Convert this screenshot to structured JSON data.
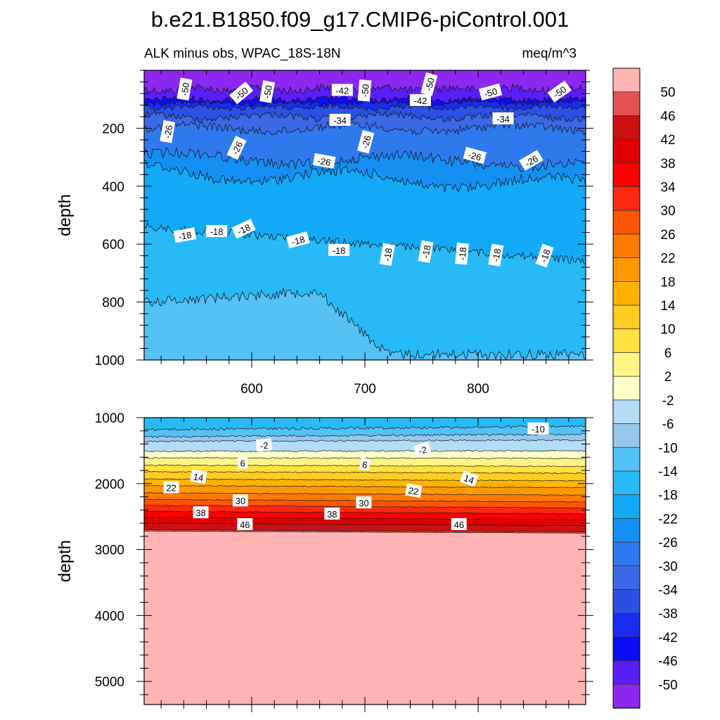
{
  "chart_data": [
    {
      "type": "contour",
      "title": "b.e21.B1850.f09_g17.CMIP6-piControl.001",
      "subtitle_left": "ALK minus obs, WPAC_18S-18N",
      "subtitle_right": "meq/m^3",
      "ylabel": "depth",
      "ylim": [
        1000,
        0
      ],
      "xlim": [
        505,
        895
      ],
      "xticks": [
        "600",
        "700",
        "800"
      ],
      "yticks": [
        "200",
        "400",
        "600",
        "800",
        "1000"
      ],
      "contour_labels": [
        {
          "text": "-50",
          "x": 541,
          "y": 65
        },
        {
          "text": "-50",
          "x": 591,
          "y": 79
        },
        {
          "text": "-50",
          "x": 614,
          "y": 74
        },
        {
          "text": "-42",
          "x": 680,
          "y": 69
        },
        {
          "text": "-50",
          "x": 700,
          "y": 70
        },
        {
          "text": "-50",
          "x": 757,
          "y": 48
        },
        {
          "text": "-42",
          "x": 749,
          "y": 104
        },
        {
          "text": "-50",
          "x": 811,
          "y": 76
        },
        {
          "text": "-50",
          "x": 872,
          "y": 74
        },
        {
          "text": "-34",
          "x": 678,
          "y": 172
        },
        {
          "text": "-34",
          "x": 822,
          "y": 167
        },
        {
          "text": "-26",
          "x": 526,
          "y": 212
        },
        {
          "text": "-26",
          "x": 587,
          "y": 268
        },
        {
          "text": "-26",
          "x": 701,
          "y": 247
        },
        {
          "text": "-26",
          "x": 664,
          "y": 314
        },
        {
          "text": "-26",
          "x": 797,
          "y": 295
        },
        {
          "text": "-26",
          "x": 847,
          "y": 312
        },
        {
          "text": "-18",
          "x": 541,
          "y": 570
        },
        {
          "text": "-18",
          "x": 569,
          "y": 556
        },
        {
          "text": "-18",
          "x": 593,
          "y": 548
        },
        {
          "text": "-18",
          "x": 641,
          "y": 587
        },
        {
          "text": "-18",
          "x": 677,
          "y": 621
        },
        {
          "text": "-18",
          "x": 720,
          "y": 636
        },
        {
          "text": "-18",
          "x": 754,
          "y": 626
        },
        {
          "text": "-18",
          "x": 786,
          "y": 633
        },
        {
          "text": "-18",
          "x": 816,
          "y": 638
        },
        {
          "text": "-18",
          "x": 859,
          "y": 640
        }
      ]
    },
    {
      "type": "contour",
      "ylabel": "depth",
      "ylim": [
        5350,
        1000
      ],
      "xlim": [
        505,
        895
      ],
      "yticks": [
        "1000",
        "2000",
        "3000",
        "4000",
        "5000"
      ],
      "contour_labels": [
        {
          "text": "-10",
          "x": 853,
          "y": 1170
        },
        {
          "text": "-2",
          "x": 611,
          "y": 1420
        },
        {
          "text": "-2",
          "x": 751,
          "y": 1490
        },
        {
          "text": "6",
          "x": 592,
          "y": 1690
        },
        {
          "text": "6",
          "x": 700,
          "y": 1710
        },
        {
          "text": "14",
          "x": 553,
          "y": 1900
        },
        {
          "text": "14",
          "x": 792,
          "y": 1930
        },
        {
          "text": "22",
          "x": 529,
          "y": 2060
        },
        {
          "text": "22",
          "x": 743,
          "y": 2110
        },
        {
          "text": "30",
          "x": 590,
          "y": 2260
        },
        {
          "text": "30",
          "x": 699,
          "y": 2290
        },
        {
          "text": "38",
          "x": 555,
          "y": 2440
        },
        {
          "text": "38",
          "x": 671,
          "y": 2460
        },
        {
          "text": "46",
          "x": 594,
          "y": 2620
        },
        {
          "text": "46",
          "x": 783,
          "y": 2620
        }
      ]
    }
  ],
  "colorbar": {
    "labels": [
      "50",
      "46",
      "42",
      "38",
      "34",
      "30",
      "26",
      "22",
      "18",
      "14",
      "10",
      "6",
      "2",
      "-2",
      "-6",
      "-10",
      "-14",
      "-18",
      "-22",
      "-26",
      "-30",
      "-34",
      "-38",
      "-42",
      "-46",
      "-50"
    ],
    "colors": [
      "#ffb3b3",
      "#e35252",
      "#cc1111",
      "#e00000",
      "#ff0000",
      "#ff2810",
      "#ff5500",
      "#ff7a00",
      "#ff9900",
      "#ffb300",
      "#ffcc22",
      "#ffe040",
      "#fff587",
      "#ffffc8",
      "#b4dcf5",
      "#96c8ee",
      "#55c2f5",
      "#27baf7",
      "#12aaf7",
      "#1490f4",
      "#2f79ef",
      "#3b68e6",
      "#2c50e3",
      "#1a2cf3",
      "#0c0cf8",
      "#5a1ef8",
      "#8c28f0"
    ]
  }
}
